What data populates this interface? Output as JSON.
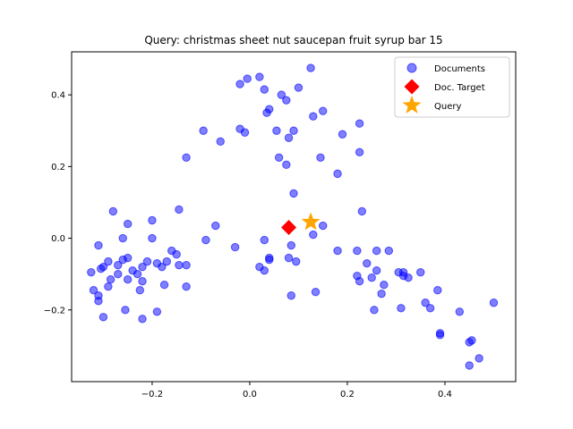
{
  "chart_data": {
    "type": "scatter",
    "title": "Query: christmas sheet nut saucepan fruit syrup bar 15",
    "xlabel": "",
    "ylabel": "",
    "xlim": [
      -0.365,
      0.545
    ],
    "ylim": [
      -0.4,
      0.52
    ],
    "xticks": [
      -0.2,
      0.0,
      0.2,
      0.4
    ],
    "yticks": [
      -0.2,
      0.0,
      0.2,
      0.4
    ],
    "xtick_labels": [
      "−0.2",
      "0.0",
      "0.2",
      "0.4"
    ],
    "ytick_labels": [
      "−0.2",
      "0.0",
      "0.2",
      "0.4"
    ],
    "legend_position": "top-right",
    "grid": false,
    "series": [
      {
        "name": "Documents",
        "marker": "circle",
        "color": "#0000ff",
        "points": [
          [
            -0.28,
            0.075
          ],
          [
            -0.25,
            0.04
          ],
          [
            -0.26,
            0.0
          ],
          [
            -0.2,
            0.05
          ],
          [
            -0.31,
            -0.02
          ],
          [
            -0.3,
            -0.08
          ],
          [
            -0.29,
            -0.065
          ],
          [
            -0.27,
            -0.075
          ],
          [
            -0.26,
            -0.06
          ],
          [
            -0.25,
            -0.055
          ],
          [
            -0.24,
            -0.09
          ],
          [
            -0.22,
            -0.08
          ],
          [
            -0.21,
            -0.065
          ],
          [
            -0.19,
            -0.07
          ],
          [
            -0.18,
            -0.08
          ],
          [
            -0.17,
            -0.065
          ],
          [
            -0.15,
            -0.045
          ],
          [
            -0.145,
            -0.075
          ],
          [
            -0.13,
            -0.075
          ],
          [
            -0.16,
            -0.035
          ],
          [
            -0.2,
            0.0
          ],
          [
            -0.25,
            -0.115
          ],
          [
            -0.23,
            -0.1
          ],
          [
            -0.22,
            -0.12
          ],
          [
            -0.27,
            -0.1
          ],
          [
            -0.285,
            -0.115
          ],
          [
            -0.29,
            -0.135
          ],
          [
            -0.31,
            -0.16
          ],
          [
            -0.31,
            -0.175
          ],
          [
            -0.32,
            -0.145
          ],
          [
            -0.325,
            -0.095
          ],
          [
            -0.305,
            -0.085
          ],
          [
            -0.255,
            -0.2
          ],
          [
            -0.225,
            -0.145
          ],
          [
            -0.22,
            -0.225
          ],
          [
            -0.19,
            -0.205
          ],
          [
            -0.175,
            -0.13
          ],
          [
            -0.13,
            -0.135
          ],
          [
            -0.3,
            -0.22
          ],
          [
            -0.145,
            0.08
          ],
          [
            -0.07,
            0.035
          ],
          [
            -0.09,
            -0.005
          ],
          [
            -0.03,
            -0.025
          ],
          [
            -0.13,
            0.225
          ],
          [
            -0.095,
            0.3
          ],
          [
            -0.06,
            0.27
          ],
          [
            -0.02,
            0.305
          ],
          [
            -0.01,
            0.295
          ],
          [
            -0.02,
            0.43
          ],
          [
            -0.005,
            0.445
          ],
          [
            0.02,
            0.45
          ],
          [
            0.03,
            0.415
          ],
          [
            0.04,
            0.36
          ],
          [
            0.035,
            0.35
          ],
          [
            0.055,
            0.3
          ],
          [
            0.065,
            0.4
          ],
          [
            0.075,
            0.385
          ],
          [
            0.1,
            0.42
          ],
          [
            0.125,
            0.475
          ],
          [
            0.13,
            0.34
          ],
          [
            0.15,
            0.355
          ],
          [
            0.08,
            0.28
          ],
          [
            0.09,
            0.3
          ],
          [
            0.06,
            0.225
          ],
          [
            0.075,
            0.205
          ],
          [
            0.09,
            0.125
          ],
          [
            0.145,
            0.225
          ],
          [
            0.19,
            0.29
          ],
          [
            0.18,
            0.18
          ],
          [
            0.225,
            0.32
          ],
          [
            0.225,
            0.24
          ],
          [
            0.23,
            0.075
          ],
          [
            0.03,
            -0.005
          ],
          [
            0.04,
            -0.055
          ],
          [
            0.04,
            -0.06
          ],
          [
            0.02,
            -0.08
          ],
          [
            0.03,
            -0.09
          ],
          [
            0.085,
            -0.02
          ],
          [
            0.08,
            -0.055
          ],
          [
            0.095,
            -0.065
          ],
          [
            0.15,
            0.035
          ],
          [
            0.13,
            0.01
          ],
          [
            0.18,
            -0.035
          ],
          [
            0.085,
            -0.16
          ],
          [
            0.135,
            -0.15
          ],
          [
            0.22,
            -0.035
          ],
          [
            0.24,
            -0.07
          ],
          [
            0.26,
            -0.035
          ],
          [
            0.285,
            -0.035
          ],
          [
            0.22,
            -0.105
          ],
          [
            0.225,
            -0.12
          ],
          [
            0.25,
            -0.11
          ],
          [
            0.26,
            -0.09
          ],
          [
            0.275,
            -0.13
          ],
          [
            0.27,
            -0.155
          ],
          [
            0.305,
            -0.095
          ],
          [
            0.315,
            -0.095
          ],
          [
            0.315,
            -0.105
          ],
          [
            0.325,
            -0.11
          ],
          [
            0.35,
            -0.095
          ],
          [
            0.31,
            -0.195
          ],
          [
            0.255,
            -0.2
          ],
          [
            0.36,
            -0.18
          ],
          [
            0.37,
            -0.195
          ],
          [
            0.385,
            -0.145
          ],
          [
            0.39,
            -0.265
          ],
          [
            0.39,
            -0.27
          ],
          [
            0.43,
            -0.205
          ],
          [
            0.45,
            -0.29
          ],
          [
            0.455,
            -0.285
          ],
          [
            0.47,
            -0.335
          ],
          [
            0.45,
            -0.355
          ],
          [
            0.5,
            -0.18
          ]
        ]
      },
      {
        "name": "Doc. Target",
        "marker": "diamond",
        "color": "#ff0000",
        "points": [
          [
            0.08,
            0.03
          ]
        ]
      },
      {
        "name": "Query",
        "marker": "star",
        "color": "#ffa500",
        "points": [
          [
            0.125,
            0.045
          ]
        ]
      }
    ]
  }
}
